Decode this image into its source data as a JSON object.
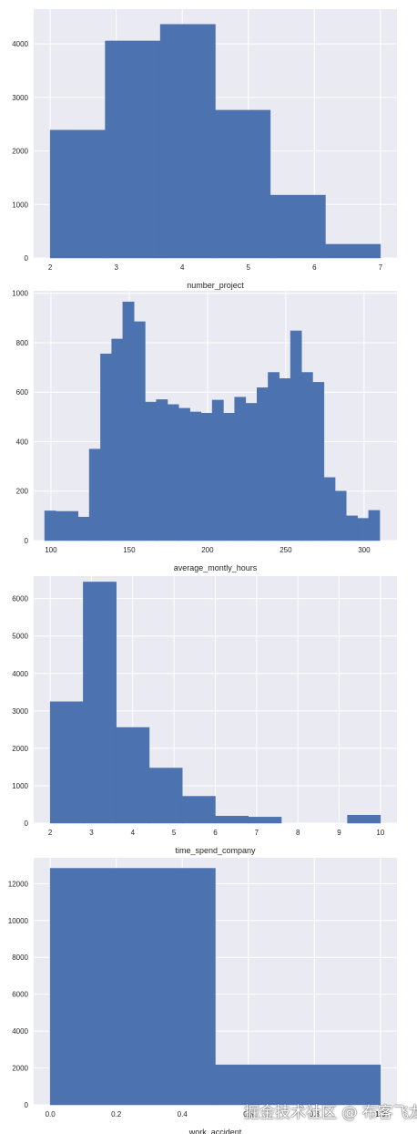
{
  "chart_data": [
    {
      "type": "bar",
      "xlabel": "number_project",
      "ylabel": "",
      "xlim": [
        1.75,
        7.25
      ],
      "ylim": [
        0,
        4650
      ],
      "xticks": [
        2,
        3,
        4,
        5,
        6,
        7
      ],
      "yticks": [
        0,
        1000,
        2000,
        3000,
        4000
      ],
      "bins": [
        {
          "x0": 2.0,
          "x1": 2.833,
          "value": 2388
        },
        {
          "x0": 2.833,
          "x1": 3.667,
          "value": 4055
        },
        {
          "x0": 3.667,
          "x1": 4.5,
          "value": 4365
        },
        {
          "x0": 4.5,
          "x1": 5.333,
          "value": 2761
        },
        {
          "x0": 5.333,
          "x1": 6.167,
          "value": 1174
        },
        {
          "x0": 6.167,
          "x1": 7.0,
          "value": 256
        }
      ],
      "grid": true
    },
    {
      "type": "bar",
      "xlabel": "average_montly_hours",
      "ylabel": "",
      "xlim": [
        89,
        321
      ],
      "ylim": [
        0,
        1010
      ],
      "xticks": [
        100,
        150,
        200,
        250,
        300
      ],
      "yticks": [
        0,
        200,
        400,
        600,
        800,
        1000
      ],
      "bins": [
        {
          "x0": 96,
          "x1": 103.1,
          "value": 120
        },
        {
          "x0": 103.1,
          "x1": 110.3,
          "value": 118
        },
        {
          "x0": 110.3,
          "x1": 117.4,
          "value": 118
        },
        {
          "x0": 117.4,
          "x1": 124.5,
          "value": 95
        },
        {
          "x0": 124.5,
          "x1": 131.7,
          "value": 370
        },
        {
          "x0": 131.7,
          "x1": 138.8,
          "value": 755
        },
        {
          "x0": 138.8,
          "x1": 145.9,
          "value": 815
        },
        {
          "x0": 145.9,
          "x1": 153.1,
          "value": 965
        },
        {
          "x0": 153.1,
          "x1": 160.2,
          "value": 885
        },
        {
          "x0": 160.2,
          "x1": 167.3,
          "value": 560
        },
        {
          "x0": 167.3,
          "x1": 174.5,
          "value": 570
        },
        {
          "x0": 174.5,
          "x1": 181.6,
          "value": 550
        },
        {
          "x0": 181.6,
          "x1": 188.8,
          "value": 535
        },
        {
          "x0": 188.8,
          "x1": 195.9,
          "value": 520
        },
        {
          "x0": 195.9,
          "x1": 203.0,
          "value": 515
        },
        {
          "x0": 203.0,
          "x1": 210.2,
          "value": 568
        },
        {
          "x0": 210.2,
          "x1": 217.3,
          "value": 515
        },
        {
          "x0": 217.3,
          "x1": 224.4,
          "value": 580
        },
        {
          "x0": 224.4,
          "x1": 231.6,
          "value": 555
        },
        {
          "x0": 231.6,
          "x1": 238.7,
          "value": 618
        },
        {
          "x0": 238.7,
          "x1": 245.8,
          "value": 680
        },
        {
          "x0": 245.8,
          "x1": 253.0,
          "value": 655
        },
        {
          "x0": 253.0,
          "x1": 260.1,
          "value": 848
        },
        {
          "x0": 260.1,
          "x1": 267.2,
          "value": 680
        },
        {
          "x0": 267.2,
          "x1": 274.4,
          "value": 640
        },
        {
          "x0": 274.4,
          "x1": 281.5,
          "value": 255
        },
        {
          "x0": 281.5,
          "x1": 288.6,
          "value": 200
        },
        {
          "x0": 288.6,
          "x1": 295.8,
          "value": 100
        },
        {
          "x0": 295.8,
          "x1": 302.9,
          "value": 90
        },
        {
          "x0": 302.9,
          "x1": 310.0,
          "value": 122
        }
      ],
      "grid": true
    },
    {
      "type": "bar",
      "xlabel": "time_spend_company",
      "ylabel": "",
      "xlim": [
        1.6,
        10.4
      ],
      "ylim": [
        0,
        6600
      ],
      "xticks": [
        2,
        3,
        4,
        5,
        6,
        7,
        8,
        9,
        10
      ],
      "yticks": [
        0,
        1000,
        2000,
        3000,
        4000,
        5000,
        6000
      ],
      "bins": [
        {
          "x0": 2.0,
          "x1": 2.8,
          "value": 3244
        },
        {
          "x0": 2.8,
          "x1": 3.6,
          "value": 6443
        },
        {
          "x0": 3.6,
          "x1": 4.4,
          "value": 2557
        },
        {
          "x0": 4.4,
          "x1": 5.2,
          "value": 1473
        },
        {
          "x0": 5.2,
          "x1": 6.0,
          "value": 718
        },
        {
          "x0": 6.0,
          "x1": 6.8,
          "value": 188
        },
        {
          "x0": 6.8,
          "x1": 7.6,
          "value": 162
        },
        {
          "x0": 7.6,
          "x1": 8.4,
          "value": 0
        },
        {
          "x0": 8.4,
          "x1": 9.2,
          "value": 0
        },
        {
          "x0": 9.2,
          "x1": 10.0,
          "value": 214
        }
      ],
      "grid": true
    },
    {
      "type": "bar",
      "xlabel": "work_accident",
      "ylabel": "",
      "xlim": [
        -0.05,
        1.05
      ],
      "ylim": [
        0,
        13400
      ],
      "xticks": [
        0.0,
        0.2,
        0.4,
        0.6,
        0.8,
        1.0
      ],
      "xtick_labels": [
        "0.0",
        "0.2",
        "0.4",
        "0.6",
        "0.8",
        "1.0"
      ],
      "yticks": [
        0,
        2000,
        4000,
        6000,
        8000,
        10000,
        12000
      ],
      "bins": [
        {
          "x0": 0.0,
          "x1": 0.5,
          "value": 12830
        },
        {
          "x0": 0.5,
          "x1": 1.0,
          "value": 2169
        }
      ],
      "grid": true
    }
  ],
  "colors": {
    "bar": "#4c72b0",
    "plot_bg": "#eaeaf2",
    "grid": "#ffffff",
    "text": "#262626"
  },
  "watermark": "掘金技术社区 @ 布客飞龙"
}
